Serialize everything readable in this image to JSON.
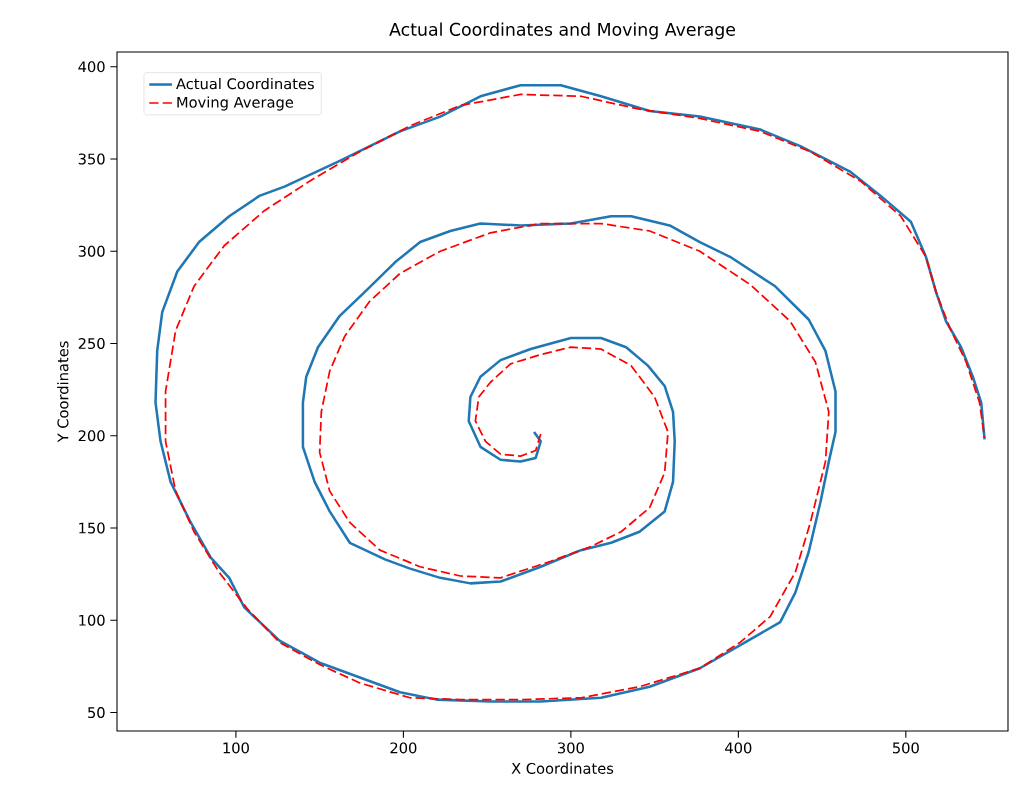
{
  "chart_data": {
    "type": "line",
    "title": "Actual Coordinates and Moving Average",
    "xlabel": "X Coordinates",
    "ylabel": "Y Coordinates",
    "xlim": [
      29,
      561
    ],
    "ylim": [
      40,
      408
    ],
    "xticks": [
      100,
      200,
      300,
      400,
      500
    ],
    "yticks": [
      50,
      100,
      150,
      200,
      250,
      300,
      350,
      400
    ],
    "legend": "top left",
    "series": [
      {
        "name": "Actual Coordinates",
        "color": "#1f77b4",
        "line_style": "solid",
        "x": [
          278,
          282,
          279,
          270,
          258,
          246,
          239,
          240,
          246,
          258,
          276,
          300,
          318,
          333,
          346,
          356,
          361,
          362,
          361,
          356,
          341,
          324,
          306,
          282,
          258,
          240,
          222,
          204,
          189,
          168,
          156,
          147,
          140,
          140,
          142,
          149,
          162,
          177,
          195,
          210,
          228,
          246,
          270,
          300,
          324,
          336,
          359,
          377,
          395,
          422,
          442,
          452,
          458,
          458,
          454,
          449,
          442,
          434,
          425,
          404,
          377,
          347,
          318,
          282,
          252,
          220,
          198,
          174,
          150,
          126,
          105,
          96,
          85,
          73,
          61,
          55,
          52,
          53,
          56,
          65,
          78,
          96,
          114,
          129,
          162,
          198,
          222,
          246,
          270,
          294,
          318,
          347,
          377,
          413,
          437,
          467,
          485,
          503,
          512,
          518,
          524,
          533,
          540,
          545,
          547
        ],
        "values": [
          202,
          197,
          188,
          186,
          187,
          194,
          208,
          221,
          232,
          241,
          247,
          253,
          253,
          248,
          238,
          227,
          213,
          197,
          175,
          159,
          148,
          142,
          138,
          129,
          121,
          120,
          123,
          128,
          133,
          142,
          159,
          175,
          194,
          218,
          232,
          248,
          265,
          278,
          294,
          305,
          311,
          315,
          314,
          315,
          319,
          319,
          314,
          305,
          297,
          281,
          263,
          246,
          224,
          202,
          186,
          164,
          137,
          115,
          99,
          88,
          74,
          64,
          58,
          56,
          56,
          57,
          61,
          69,
          77,
          89,
          107,
          123,
          134,
          153,
          175,
          197,
          218,
          246,
          267,
          289,
          305,
          319,
          330,
          335,
          349,
          365,
          373,
          384,
          390,
          390,
          384,
          376,
          373,
          366,
          357,
          343,
          330,
          316,
          297,
          278,
          262,
          248,
          232,
          218,
          198
        ]
      },
      {
        "name": "Moving Average",
        "color": "#ff0000",
        "line_style": "dashed",
        "x": [
          282,
          279,
          270,
          258,
          249,
          243,
          245,
          252,
          264,
          282,
          300,
          318,
          336,
          350,
          358,
          356,
          347,
          330,
          312,
          288,
          258,
          234,
          210,
          186,
          168,
          156,
          150,
          151,
          156,
          165,
          180,
          198,
          222,
          252,
          282,
          318,
          347,
          377,
          407,
          431,
          446,
          454,
          452,
          443,
          434,
          419,
          401,
          377,
          341,
          306,
          270,
          234,
          204,
          174,
          150,
          126,
          107,
          90,
          75,
          64,
          58,
          58,
          64,
          75,
          93,
          117,
          144,
          174,
          204,
          234,
          270,
          306,
          341,
          377,
          413,
          443,
          473,
          497,
          512,
          518,
          526,
          536,
          544,
          547
        ],
        "values": [
          201,
          192,
          189,
          190,
          197,
          208,
          221,
          229,
          239,
          244,
          248,
          247,
          238,
          221,
          202,
          180,
          161,
          148,
          140,
          132,
          123,
          124,
          129,
          138,
          153,
          170,
          191,
          213,
          235,
          254,
          273,
          288,
          300,
          310,
          315,
          315,
          311,
          300,
          282,
          262,
          240,
          213,
          186,
          153,
          126,
          102,
          88,
          74,
          64,
          58,
          57,
          57,
          58,
          66,
          76,
          88,
          106,
          126,
          148,
          170,
          197,
          224,
          257,
          281,
          303,
          322,
          338,
          354,
          368,
          379,
          385,
          384,
          377,
          372,
          365,
          354,
          338,
          319,
          297,
          278,
          259,
          240,
          218,
          199
        ]
      }
    ]
  }
}
